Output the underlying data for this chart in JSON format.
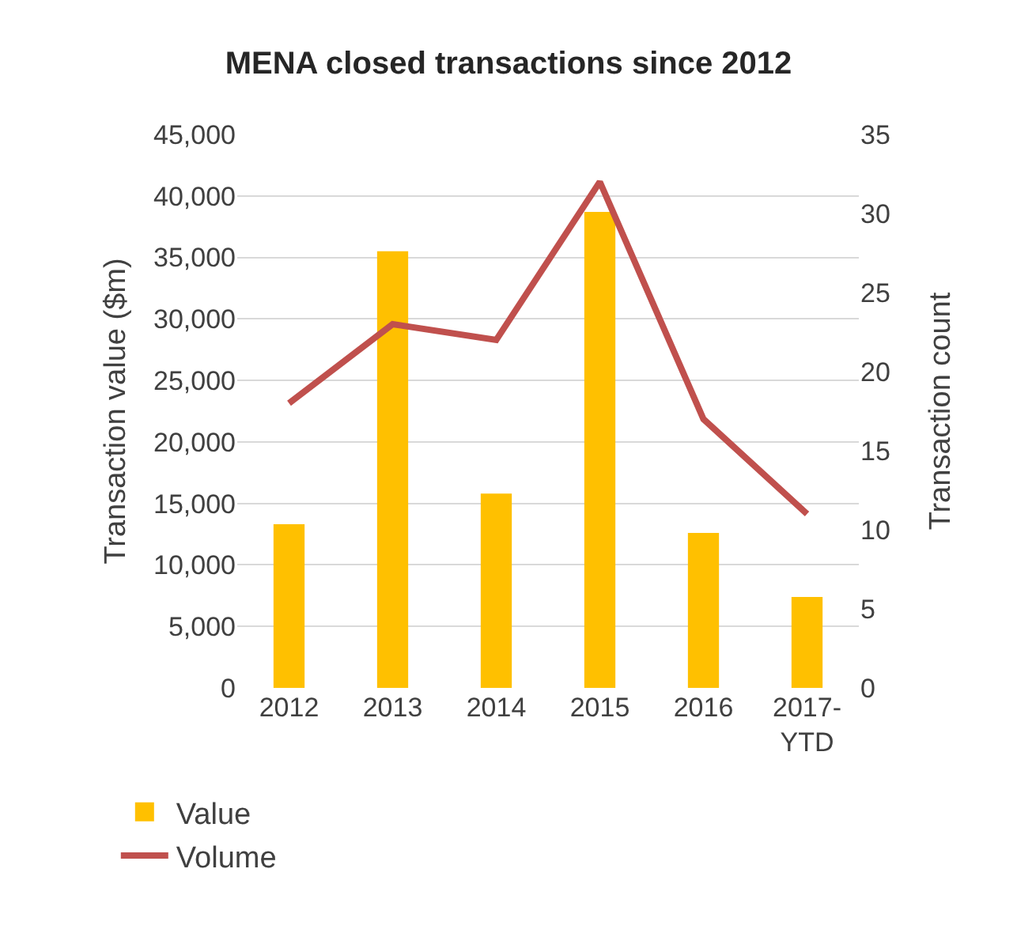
{
  "chart_data": {
    "type": "bar",
    "title": "MENA closed transactions since 2012",
    "ylabel": "Transaction value ($m)",
    "y2label": "Transaction count",
    "categories": [
      "2012",
      "2013",
      "2014",
      "2015",
      "2016",
      "2017-YTD"
    ],
    "series": [
      {
        "name": "Value",
        "color": "#ffc000",
        "values": [
          13300,
          35500,
          15800,
          38700,
          12600,
          7400
        ]
      },
      {
        "name": "Volume",
        "type": "line",
        "axis": "y2",
        "color": "#c0504d",
        "values": [
          18,
          23,
          22,
          32,
          17,
          11
        ]
      }
    ],
    "ylim": [
      0,
      45000
    ],
    "yticks": [
      {
        "value": 0,
        "label": "0"
      },
      {
        "value": 5000,
        "label": "5,000"
      },
      {
        "value": 10000,
        "label": "10,000"
      },
      {
        "value": 15000,
        "label": "15,000"
      },
      {
        "value": 20000,
        "label": "20,000"
      },
      {
        "value": 25000,
        "label": "25,000"
      },
      {
        "value": 30000,
        "label": "30,000"
      },
      {
        "value": 35000,
        "label": "35,000"
      },
      {
        "value": 40000,
        "label": "40,000"
      },
      {
        "value": 45000,
        "label": "45,000"
      }
    ],
    "y2lim": [
      0,
      35
    ],
    "y2ticks": [
      0,
      5,
      10,
      15,
      20,
      25,
      30,
      35
    ],
    "grid": "y",
    "legend": "bottom left",
    "marker": "none",
    "line_style": "solid"
  }
}
